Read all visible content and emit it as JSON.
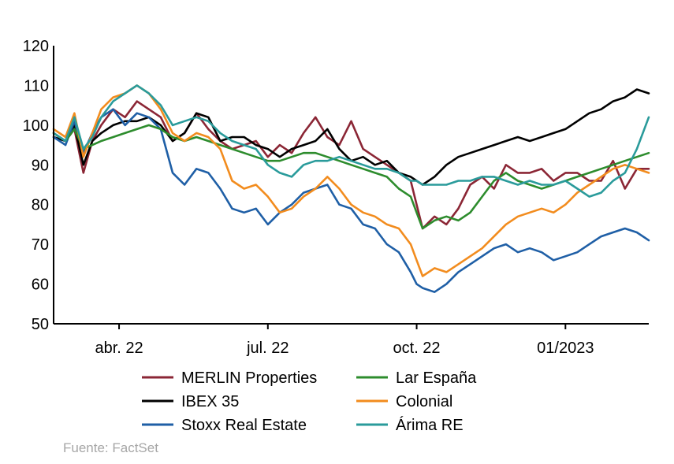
{
  "chart_data": {
    "type": "line",
    "title": "",
    "xlabel": "",
    "ylabel": "",
    "ylim": [
      50,
      120
    ],
    "yticks": [
      50,
      60,
      70,
      80,
      90,
      100,
      110,
      120
    ],
    "xlim": [
      0,
      100
    ],
    "xticks": [
      {
        "label": "abr. 22",
        "x": 11
      },
      {
        "label": "jul. 22",
        "x": 36
      },
      {
        "label": "oct. 22",
        "x": 61
      },
      {
        "label": "01/2023",
        "x": 86
      }
    ],
    "grid": false,
    "legend_position": "bottom",
    "series": [
      {
        "name": "MERLIN Properties",
        "color": "#8b2635",
        "x": [
          0,
          2,
          3.5,
          5,
          6.5,
          8,
          10,
          12,
          14,
          16,
          18,
          20,
          22,
          24,
          26,
          28,
          30,
          32,
          34,
          36,
          38,
          40,
          42,
          44,
          46,
          48,
          50,
          52,
          54,
          56,
          58,
          60,
          61,
          62,
          64,
          66,
          68,
          70,
          72,
          74,
          76,
          78,
          80,
          82,
          84,
          86,
          88,
          90,
          92,
          94,
          96,
          98,
          100
        ],
        "y": [
          98,
          96,
          99,
          88,
          96,
          100,
          104,
          102,
          106,
          104,
          102,
          96,
          98,
          103,
          99,
          96,
          94,
          95,
          96,
          92,
          95,
          93,
          98,
          102,
          97,
          95,
          101,
          94,
          92,
          90,
          88,
          86,
          80,
          74,
          77,
          75,
          79,
          85,
          87,
          84,
          90,
          88,
          88,
          89,
          86,
          88,
          88,
          86,
          86,
          91,
          84,
          89,
          89
        ]
      },
      {
        "name": "IBEX 35",
        "color": "#000000",
        "x": [
          0,
          2,
          3.5,
          5,
          6.5,
          8,
          10,
          12,
          14,
          16,
          18,
          20,
          22,
          24,
          26,
          28,
          30,
          32,
          34,
          36,
          38,
          40,
          42,
          44,
          46,
          48,
          50,
          52,
          54,
          56,
          58,
          60,
          61,
          62,
          64,
          66,
          68,
          70,
          72,
          74,
          76,
          78,
          80,
          82,
          84,
          86,
          88,
          90,
          92,
          94,
          96,
          98,
          100
        ],
        "y": [
          97,
          96,
          100,
          90,
          96,
          98,
          100,
          101,
          101,
          102,
          100,
          96,
          98,
          103,
          102,
          96,
          97,
          97,
          95,
          94,
          92,
          94,
          95,
          96,
          99,
          94,
          91,
          92,
          90,
          91,
          88,
          87,
          86,
          85,
          87,
          90,
          92,
          93,
          94,
          95,
          96,
          97,
          96,
          97,
          98,
          99,
          101,
          103,
          104,
          106,
          107,
          109,
          108
        ]
      },
      {
        "name": "Stoxx Real Estate",
        "color": "#1f5fa6",
        "x": [
          0,
          2,
          3.5,
          5,
          6.5,
          8,
          10,
          12,
          14,
          16,
          18,
          20,
          22,
          24,
          26,
          28,
          30,
          32,
          34,
          36,
          38,
          40,
          42,
          44,
          46,
          48,
          50,
          52,
          54,
          56,
          58,
          60,
          61,
          62,
          64,
          66,
          68,
          70,
          72,
          74,
          76,
          78,
          80,
          82,
          84,
          86,
          88,
          90,
          92,
          94,
          96,
          98,
          100
        ],
        "y": [
          97,
          95,
          101,
          93,
          98,
          102,
          104,
          100,
          103,
          102,
          99,
          88,
          85,
          89,
          88,
          84,
          79,
          78,
          79,
          75,
          78,
          80,
          83,
          84,
          85,
          80,
          79,
          75,
          74,
          70,
          68,
          63,
          60,
          59,
          58,
          60,
          63,
          65,
          67,
          69,
          70,
          68,
          69,
          68,
          66,
          67,
          68,
          70,
          72,
          73,
          74,
          73,
          71
        ]
      },
      {
        "name": "Lar España",
        "color": "#2d8c2d",
        "x": [
          0,
          2,
          3.5,
          5,
          6.5,
          8,
          10,
          12,
          14,
          16,
          18,
          20,
          22,
          24,
          26,
          28,
          30,
          32,
          34,
          36,
          38,
          40,
          42,
          44,
          46,
          48,
          50,
          52,
          54,
          56,
          58,
          60,
          61,
          62,
          64,
          66,
          68,
          70,
          72,
          74,
          76,
          78,
          80,
          82,
          84,
          86,
          88,
          90,
          92,
          94,
          96,
          98,
          100
        ],
        "y": [
          98,
          96,
          99,
          94,
          95,
          96,
          97,
          98,
          99,
          100,
          99,
          97,
          96,
          97,
          96,
          95,
          94,
          93,
          92,
          91,
          91,
          92,
          93,
          93,
          92,
          91,
          90,
          89,
          88,
          87,
          84,
          82,
          78,
          74,
          76,
          77,
          76,
          78,
          82,
          86,
          88,
          86,
          85,
          84,
          85,
          86,
          87,
          88,
          89,
          90,
          91,
          92,
          93
        ]
      },
      {
        "name": "Colonial",
        "color": "#f28c1e",
        "x": [
          0,
          2,
          3.5,
          5,
          6.5,
          8,
          10,
          12,
          14,
          16,
          18,
          20,
          22,
          24,
          26,
          28,
          30,
          32,
          34,
          36,
          38,
          40,
          42,
          44,
          46,
          48,
          50,
          52,
          54,
          56,
          58,
          60,
          61,
          62,
          64,
          66,
          68,
          70,
          72,
          74,
          76,
          78,
          80,
          82,
          84,
          86,
          88,
          90,
          92,
          94,
          96,
          98,
          100
        ],
        "y": [
          99,
          97,
          103,
          92,
          98,
          104,
          107,
          108,
          110,
          108,
          104,
          98,
          96,
          98,
          97,
          94,
          86,
          84,
          85,
          82,
          78,
          79,
          82,
          84,
          87,
          84,
          80,
          78,
          77,
          75,
          74,
          70,
          66,
          62,
          64,
          63,
          65,
          67,
          69,
          72,
          75,
          77,
          78,
          79,
          78,
          80,
          83,
          85,
          87,
          89,
          90,
          89,
          88
        ]
      },
      {
        "name": "Árima RE",
        "color": "#2a9b9b",
        "x": [
          0,
          2,
          3.5,
          5,
          6.5,
          8,
          10,
          12,
          14,
          16,
          18,
          20,
          22,
          24,
          26,
          28,
          30,
          32,
          34,
          36,
          38,
          40,
          42,
          44,
          46,
          48,
          50,
          52,
          54,
          56,
          58,
          60,
          61,
          62,
          64,
          66,
          68,
          70,
          72,
          74,
          76,
          78,
          80,
          82,
          84,
          86,
          88,
          90,
          92,
          94,
          96,
          98,
          100
        ],
        "y": [
          98,
          96,
          102,
          94,
          97,
          102,
          106,
          108,
          110,
          108,
          105,
          100,
          101,
          102,
          101,
          98,
          96,
          95,
          94,
          90,
          88,
          87,
          90,
          91,
          91,
          92,
          91,
          90,
          89,
          89,
          88,
          86,
          86,
          85,
          85,
          85,
          86,
          86,
          87,
          87,
          86,
          85,
          86,
          85,
          85,
          86,
          84,
          82,
          83,
          86,
          88,
          94,
          102
        ]
      }
    ],
    "source": "Fuente: FactSet"
  }
}
